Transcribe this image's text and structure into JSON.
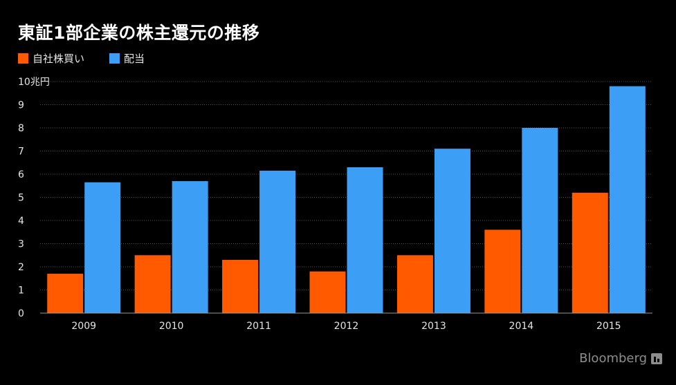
{
  "title": "東証1部企業の株主還元の推移",
  "brand": {
    "name": "Bloomberg",
    "icon": "bloomberg-logo-icon"
  },
  "colors": {
    "background": "#000000",
    "buyback": "#ff5a00",
    "dividend": "#3d9ef5",
    "grid": "#555555",
    "axis": "#9a9a9a",
    "text": "#e6e6e6"
  },
  "chart_data": {
    "type": "bar",
    "categories": [
      "2009",
      "2010",
      "2011",
      "2012",
      "2013",
      "2014",
      "2015"
    ],
    "series": [
      {
        "name": "自社株買い",
        "values": [
          1.7,
          2.5,
          2.3,
          1.8,
          2.5,
          3.6,
          5.2
        ]
      },
      {
        "name": "配当",
        "values": [
          5.65,
          5.7,
          6.15,
          6.3,
          7.1,
          8.0,
          9.8
        ]
      }
    ],
    "ylim": [
      0,
      10
    ],
    "yticks": [
      "0",
      "1",
      "2",
      "3",
      "4",
      "5",
      "6",
      "7",
      "8",
      "9",
      "10兆円"
    ],
    "ylabel": "",
    "xlabel": "",
    "grid": true,
    "legend_position": "top-left"
  }
}
